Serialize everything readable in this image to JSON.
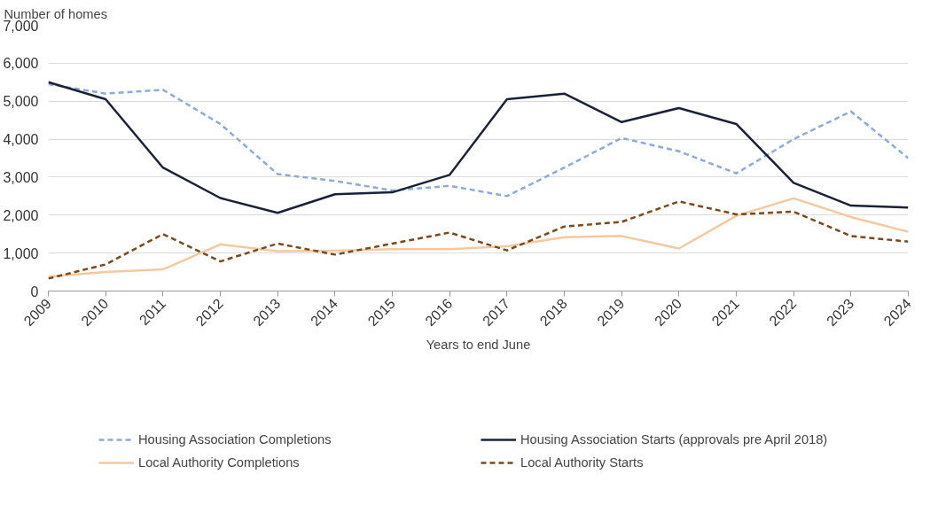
{
  "chart_data": {
    "type": "line",
    "ylabel": "Number of homes",
    "xlabel": "Years to end June",
    "categories": [
      "2009",
      "2010",
      "2011",
      "2012",
      "2013",
      "2014",
      "2015",
      "2016",
      "2017",
      "2018",
      "2019",
      "2020",
      "2021",
      "2022",
      "2023",
      "2024"
    ],
    "ylim": [
      0,
      7000
    ],
    "yticks": [
      {
        "value": 0,
        "label": "0"
      },
      {
        "value": 1000,
        "label": "1,000"
      },
      {
        "value": 2000,
        "label": "2,000"
      },
      {
        "value": 3000,
        "label": "3,000"
      },
      {
        "value": 4000,
        "label": "4,000"
      },
      {
        "value": 5000,
        "label": "5,000"
      },
      {
        "value": 6000,
        "label": "6,000"
      },
      {
        "value": 7000,
        "label": "7,000"
      }
    ],
    "grid": "y",
    "legend": "bottom",
    "marker": "none",
    "series": [
      {
        "name": "Housing Association Completions",
        "color": "#8eaad6",
        "line_style": "dashed",
        "values": [
          5450,
          5200,
          5300,
          4400,
          3080,
          2900,
          2650,
          2770,
          2500,
          3250,
          4030,
          3680,
          3100,
          4000,
          4730,
          3500
        ]
      },
      {
        "name": "Housing Association Starts (approvals pre April 2018)",
        "color": "#1a2238",
        "line_style": "solid",
        "values": [
          5500,
          5050,
          3250,
          2450,
          2060,
          2550,
          2600,
          3060,
          5050,
          5200,
          4450,
          4820,
          4400,
          2850,
          2250,
          2200
        ]
      },
      {
        "name": "Local Authority Completions",
        "color": "#f5c9a0",
        "line_style": "solid",
        "values": [
          380,
          500,
          570,
          1230,
          1050,
          1060,
          1100,
          1100,
          1180,
          1420,
          1450,
          1120,
          1980,
          2440,
          1950,
          1560
        ]
      },
      {
        "name": "Local Authority Starts",
        "color": "#7b4a1c",
        "line_style": "dashed",
        "values": [
          330,
          700,
          1500,
          780,
          1250,
          960,
          1250,
          1540,
          1070,
          1700,
          1820,
          2360,
          2020,
          2090,
          1450,
          1300
        ]
      }
    ]
  }
}
